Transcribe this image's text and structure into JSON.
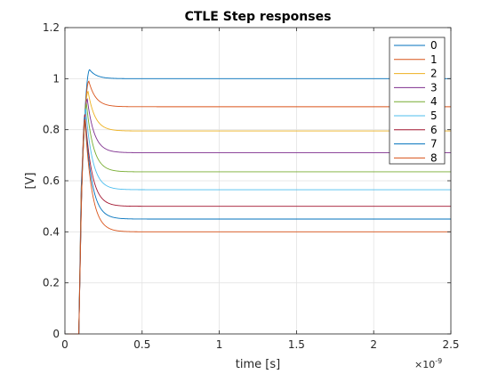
{
  "chart_data": {
    "type": "line",
    "title": "CTLE Step responses",
    "xlabel": "time [s]",
    "ylabel": "[V]",
    "x_exponent_label": "×10",
    "x_exponent_power": "-9",
    "xlim": [
      0,
      2.5
    ],
    "ylim": [
      0,
      1.2
    ],
    "xticks": [
      0,
      0.5,
      1,
      1.5,
      2,
      2.5
    ],
    "xtick_labels": [
      "0",
      "0.5",
      "1",
      "1.5",
      "2",
      "2.5"
    ],
    "yticks": [
      0,
      0.2,
      0.4,
      0.6,
      0.8,
      1,
      1.2
    ],
    "ytick_labels": [
      "0",
      "0.2",
      "0.4",
      "0.6",
      "0.8",
      "1",
      "1.2"
    ],
    "grid": true,
    "legend_position": "top-right",
    "series": [
      {
        "name": "0",
        "color": "#0072BD",
        "peak_x": 0.16,
        "peak_y": 1.035,
        "final_y": 1.0
      },
      {
        "name": "1",
        "color": "#D95319",
        "peak_x": 0.155,
        "peak_y": 0.99,
        "final_y": 0.89
      },
      {
        "name": "2",
        "color": "#EDB120",
        "peak_x": 0.15,
        "peak_y": 0.95,
        "final_y": 0.795
      },
      {
        "name": "3",
        "color": "#7E2F8E",
        "peak_x": 0.145,
        "peak_y": 0.92,
        "final_y": 0.71
      },
      {
        "name": "4",
        "color": "#77AC30",
        "peak_x": 0.14,
        "peak_y": 0.9,
        "final_y": 0.635
      },
      {
        "name": "5",
        "color": "#4DBEEE",
        "peak_x": 0.135,
        "peak_y": 0.88,
        "final_y": 0.565
      },
      {
        "name": "6",
        "color": "#A2142F",
        "peak_x": 0.13,
        "peak_y": 0.86,
        "final_y": 0.5
      },
      {
        "name": "7",
        "color": "#0072BD",
        "peak_x": 0.13,
        "peak_y": 0.85,
        "final_y": 0.45
      },
      {
        "name": "8",
        "color": "#D95319",
        "peak_x": 0.13,
        "peak_y": 0.84,
        "final_y": 0.4
      }
    ]
  }
}
